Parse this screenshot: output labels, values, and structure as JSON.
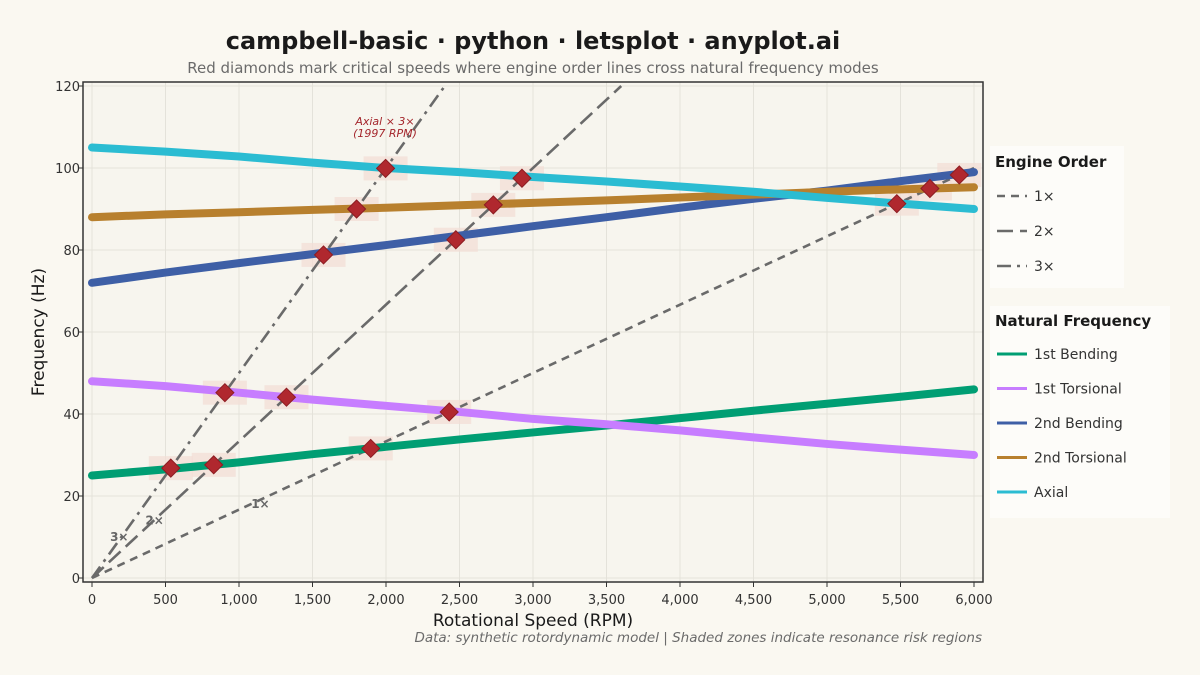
{
  "title": "campbell-basic · python · letsplot · anyplot.ai",
  "subtitle": "Red diamonds mark critical speeds where engine order lines cross natural frequency modes",
  "caption": "Data: synthetic rotordynamic model | Shaded zones indicate resonance risk regions",
  "colors": {
    "background": "#FAF8F1",
    "critical_marker": "#B0282E",
    "risk_zone": "#F3DDD6",
    "order_line": "#6A6A6A"
  },
  "chart_data": {
    "type": "line",
    "xlabel": "Rotational Speed (RPM)",
    "ylabel": "Frequency (Hz)",
    "xlim": [
      0,
      6000
    ],
    "ylim": [
      0,
      120
    ],
    "x_ticks": [
      0,
      500,
      1000,
      1500,
      2000,
      2500,
      3000,
      3500,
      4000,
      4500,
      5000,
      5500,
      6000
    ],
    "x_tick_labels": [
      "0",
      "500",
      "1,000",
      "1,500",
      "2,000",
      "2,500",
      "3,000",
      "3,500",
      "4,000",
      "4,500",
      "5,000",
      "5,500",
      "6,000"
    ],
    "y_ticks": [
      0,
      20,
      40,
      60,
      80,
      100,
      120
    ],
    "y_tick_labels": [
      "0",
      "20",
      "40",
      "60",
      "80",
      "100",
      "120"
    ],
    "grid": true,
    "legend_position": "right",
    "engine_orders": {
      "legend_title": "Engine Order",
      "items": [
        {
          "name": "1×",
          "order": 1,
          "dash": "dashed",
          "label": "1×"
        },
        {
          "name": "2×",
          "order": 2,
          "dash": "longdash",
          "label": "2×"
        },
        {
          "name": "3×",
          "order": 3,
          "dash": "dashdot",
          "label": "3×"
        }
      ]
    },
    "modes": {
      "legend_title": "Natural Frequency",
      "items": [
        {
          "name": "1st Bending",
          "color": "#009E73",
          "x": [
            0,
            500,
            1000,
            1500,
            2000,
            2500,
            3000,
            3500,
            4000,
            4500,
            5000,
            5500,
            6000
          ],
          "y": [
            25,
            26.5,
            28.2,
            30.2,
            32,
            33.8,
            35.5,
            37.2,
            39,
            40.8,
            42.5,
            44.2,
            46
          ]
        },
        {
          "name": "1st Torsional",
          "color": "#C77DFF",
          "x": [
            0,
            500,
            1000,
            1500,
            2000,
            2500,
            3000,
            3500,
            4000,
            4500,
            5000,
            5500,
            6000
          ],
          "y": [
            48,
            46.8,
            45.2,
            43.5,
            42,
            40.5,
            38.8,
            37.5,
            36,
            34.3,
            32.7,
            31.3,
            30
          ]
        },
        {
          "name": "2nd Bending",
          "color": "#3E5FA6",
          "x": [
            0,
            500,
            1000,
            1500,
            2000,
            2500,
            3000,
            3500,
            4000,
            4500,
            5000,
            5500,
            6000
          ],
          "y": [
            72,
            74.5,
            76.8,
            79,
            81.2,
            83.5,
            85.8,
            88,
            90.3,
            92.5,
            94.5,
            96.8,
            99
          ]
        },
        {
          "name": "2nd Torsional",
          "color": "#B8802E",
          "x": [
            0,
            500,
            1000,
            1500,
            2000,
            2500,
            3000,
            3500,
            4000,
            4500,
            5000,
            5500,
            6000
          ],
          "y": [
            88,
            88.7,
            89.2,
            89.8,
            90.3,
            90.9,
            91.5,
            92.1,
            92.8,
            93.5,
            94.2,
            94.8,
            95.3
          ]
        },
        {
          "name": "Axial",
          "color": "#2BBCD2",
          "x": [
            0,
            500,
            1000,
            1500,
            2000,
            2500,
            3000,
            3500,
            4000,
            4500,
            5000,
            5500,
            6000
          ],
          "y": [
            105,
            104,
            102.8,
            101.3,
            100,
            99,
            97.8,
            96.7,
            95.5,
            94.2,
            92.7,
            91.3,
            90
          ]
        }
      ]
    },
    "critical_speeds": [
      {
        "rpm": 536,
        "freq": 26.8
      },
      {
        "rpm": 828,
        "freq": 27.6
      },
      {
        "rpm": 904,
        "freq": 45.2
      },
      {
        "rpm": 1323,
        "freq": 44.1
      },
      {
        "rpm": 1575,
        "freq": 78.8
      },
      {
        "rpm": 1800,
        "freq": 90.0
      },
      {
        "rpm": 1896,
        "freq": 31.6
      },
      {
        "rpm": 1997,
        "freq": 99.9
      },
      {
        "rpm": 2430,
        "freq": 40.5
      },
      {
        "rpm": 2475,
        "freq": 82.5
      },
      {
        "rpm": 2730,
        "freq": 91.0
      },
      {
        "rpm": 2925,
        "freq": 97.5
      },
      {
        "rpm": 5475,
        "freq": 91.3
      },
      {
        "rpm": 5700,
        "freq": 95.0
      },
      {
        "rpm": 5900,
        "freq": 98.3
      }
    ],
    "annotation": {
      "line1": "Axial × 3×",
      "line2": "(1997 RPM)",
      "rpm": 1997,
      "freq": 99.9
    }
  }
}
